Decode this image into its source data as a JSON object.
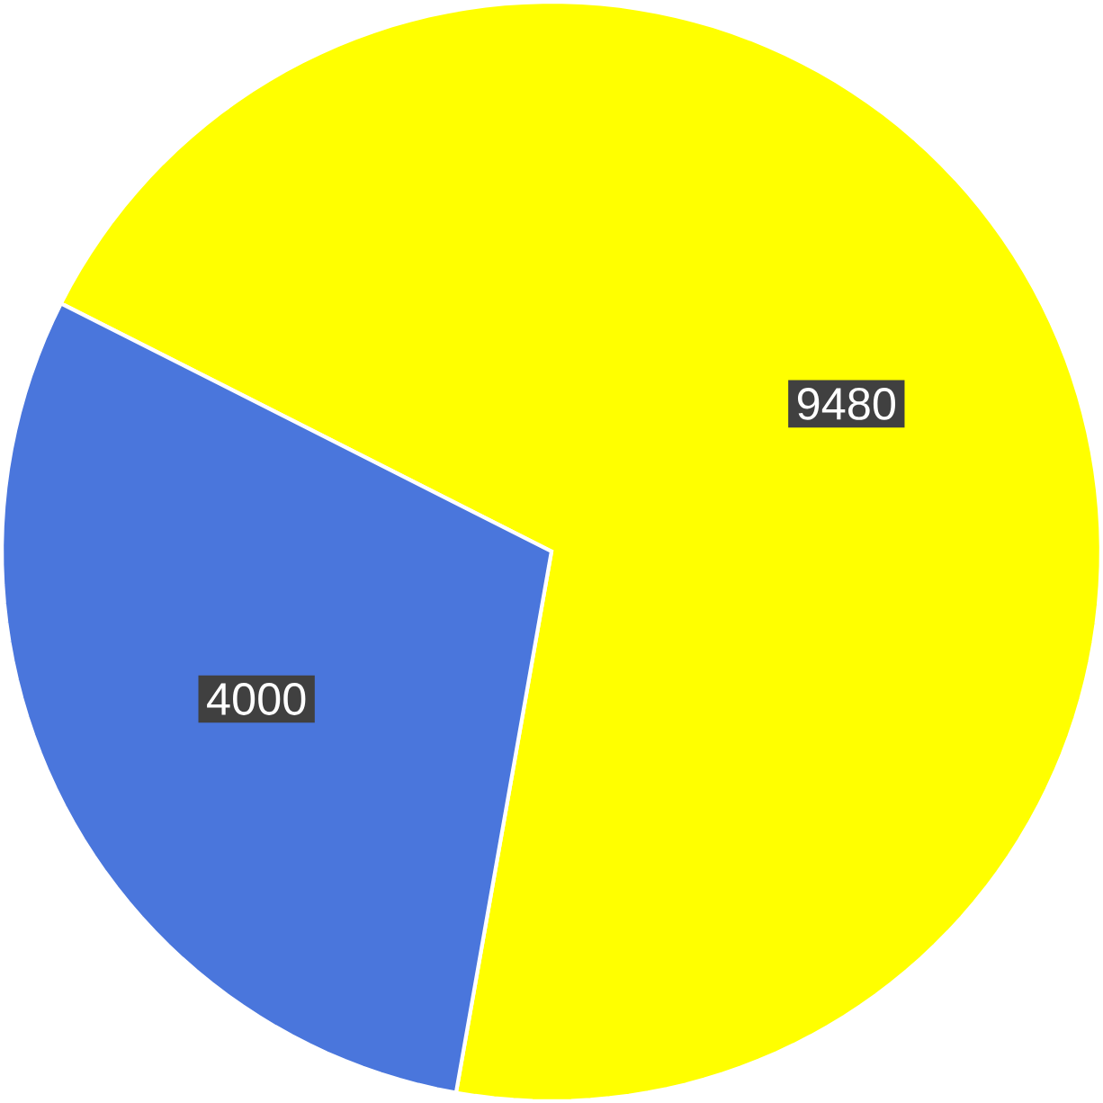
{
  "chart_data": {
    "type": "pie",
    "categories": [
      null,
      null
    ],
    "values": [
      9480,
      4000
    ],
    "colors": [
      "#ffff00",
      "#4a76dc"
    ],
    "data_labels": true
  }
}
